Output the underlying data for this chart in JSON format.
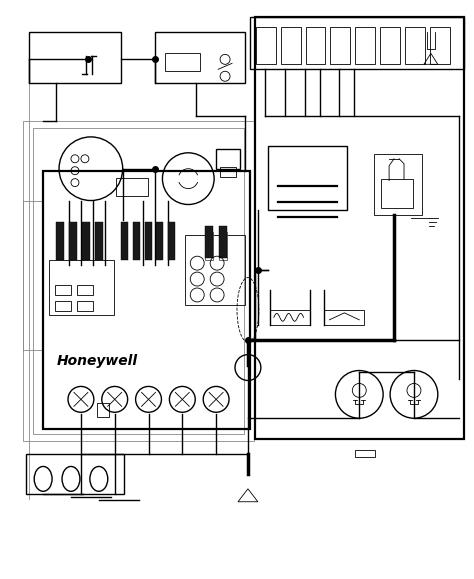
{
  "bg_color": "#ffffff",
  "lc": "#000000",
  "gray": "#888888",
  "lt": 0.6,
  "lm": 1.0,
  "lk": 1.6,
  "lb": 2.5,
  "honeywell_label": "Honeywell"
}
